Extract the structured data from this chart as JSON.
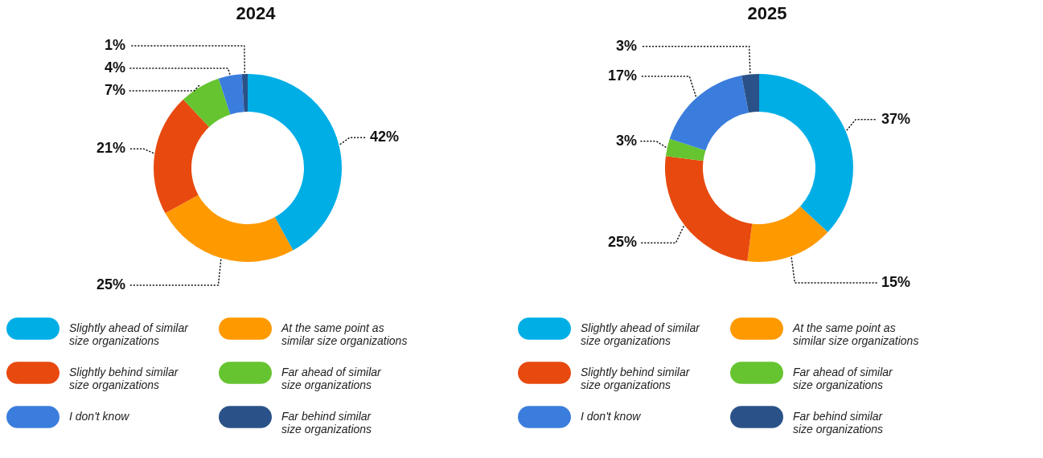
{
  "chart_data": [
    {
      "type": "donut",
      "title": "2024",
      "categories": [
        "Slightly ahead of similar size organizations",
        "At the same point as similar size organizations",
        "Slightly behind similar size organizations",
        "Far ahead of similar size organizations",
        "I don't know",
        "Far behind similar size organizations"
      ],
      "values": [
        42,
        25,
        21,
        7,
        4,
        1
      ],
      "value_labels": [
        "42%",
        "25%",
        "21%",
        "7%",
        "4%",
        "1%"
      ],
      "colors": [
        "#00aee6",
        "#ff9900",
        "#e8490f",
        "#66c430",
        "#3b7ddd",
        "#2a5289"
      ],
      "legend": "bottom"
    },
    {
      "type": "donut",
      "title": "2025",
      "categories": [
        "Slightly ahead of similar size organizations",
        "At the same point as similar size organizations",
        "Slightly behind similar size organizations",
        "Far ahead of similar size organizations",
        "I don't know",
        "Far behind similar size organizations"
      ],
      "values": [
        37,
        15,
        25,
        3,
        17,
        3
      ],
      "value_labels": [
        "37%",
        "15%",
        "25%",
        "3%",
        "17%",
        "3%"
      ],
      "colors": [
        "#00aee6",
        "#ff9900",
        "#e8490f",
        "#66c430",
        "#3b7ddd",
        "#2a5289"
      ],
      "legend": "bottom"
    }
  ]
}
